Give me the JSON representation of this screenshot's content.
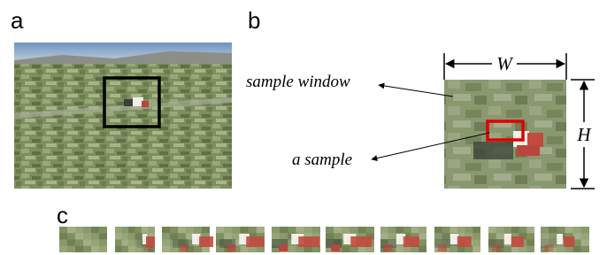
{
  "panels": {
    "a": {
      "label": "a"
    },
    "b": {
      "label": "b",
      "sample_window_label": "sample window",
      "sample_label": "a sample",
      "width_label": "W",
      "height_label": "H"
    },
    "c": {
      "label": "c"
    }
  }
}
